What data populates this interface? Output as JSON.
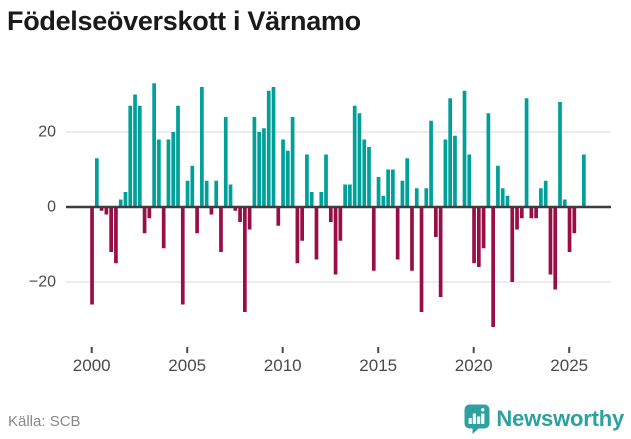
{
  "title": "Födelseöverskott i Värnamo",
  "footer": {
    "source": "Källa: SCB",
    "brand": "Newsworthy"
  },
  "colors": {
    "positive_bar": "#00a09a",
    "negative_bar": "#990e46",
    "zero_line": "#3d3d3d",
    "gridline": "#e6e6e6",
    "axis_text": "#4a4a4a",
    "tick_mark": "#4a4a4a",
    "title_text": "#1a1a1a",
    "source_text": "#888888",
    "brand_teal": "#2ca1a0"
  },
  "chart_data": {
    "type": "bar",
    "title": "Födelseöverskott i Värnamo",
    "period": "quarterly",
    "start_year": 2000,
    "quarters_per_year": 4,
    "x_tick_years": [
      2000,
      2005,
      2010,
      2015,
      2020,
      2025
    ],
    "y_ticks": [
      {
        "value": 20,
        "label": "20"
      },
      {
        "value": 0,
        "label": "0"
      },
      {
        "value": -20,
        "label": "−20"
      }
    ],
    "gridlines": [
      20,
      -20
    ],
    "ylim": [
      -35,
      36
    ],
    "legend": "none",
    "values": [
      -26,
      13,
      -1,
      -2,
      -12,
      -15,
      2,
      4,
      27,
      30,
      27,
      -7,
      -3,
      33,
      18,
      -11,
      18,
      20,
      27,
      -26,
      7,
      11,
      -7,
      32,
      7,
      -2,
      7,
      -12,
      24,
      6,
      -1,
      -4,
      -28,
      -6,
      24,
      20,
      21,
      31,
      32,
      -5,
      18,
      15,
      24,
      -15,
      -9,
      14,
      4,
      -14,
      4,
      14,
      -4,
      -18,
      -9,
      6,
      6,
      27,
      25,
      18,
      16,
      -17,
      8,
      3,
      10,
      10,
      -14,
      7,
      13,
      -17,
      5,
      -28,
      5,
      23,
      -8,
      -24,
      18,
      29,
      19,
      0,
      31,
      14,
      -15,
      -16,
      -11,
      25,
      -32,
      11,
      5,
      3,
      -20,
      -6,
      -3,
      29,
      -3,
      -3,
      5,
      7,
      -18,
      -22,
      28,
      2,
      -12,
      -7,
      0,
      14
    ]
  }
}
